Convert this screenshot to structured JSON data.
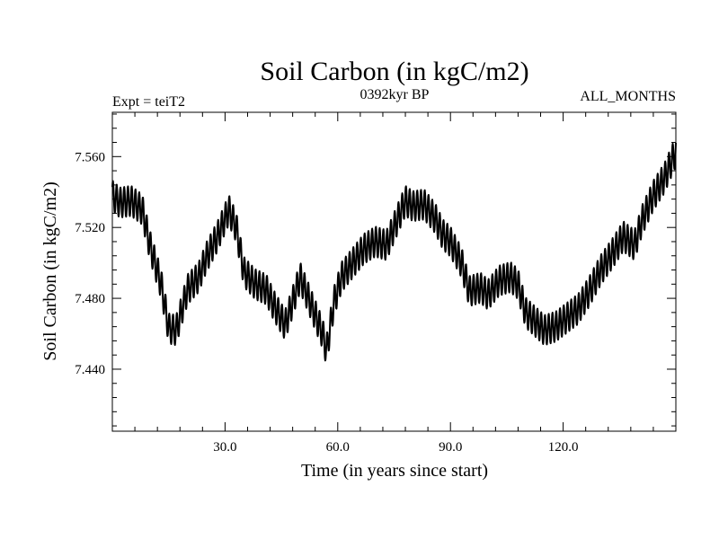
{
  "chart_data": {
    "type": "line",
    "title": "Soil Carbon (in kgC/m2)",
    "subtitle_left": "Expt = teiT2",
    "subtitle_center": "0392kyr BP",
    "subtitle_right": "ALL_MONTHS",
    "xlabel": "Time (in years since start)",
    "ylabel": "Soil Carbon (in kgC/m2)",
    "xlim": [
      0,
      150
    ],
    "ylim": [
      7.405,
      7.585
    ],
    "x_ticks": [
      30,
      60,
      90,
      120
    ],
    "x_tick_labels": [
      "30.0",
      "60.0",
      "90.0",
      "120.0"
    ],
    "y_ticks": [
      7.44,
      7.48,
      7.52,
      7.56
    ],
    "y_tick_labels": [
      "7.440",
      "7.480",
      "7.520",
      "7.560"
    ],
    "grid": false,
    "line_color": "#000000",
    "series": [
      {
        "x": [
          0,
          2,
          5,
          8,
          10,
          13,
          15,
          17,
          20,
          23,
          25,
          28,
          31,
          33,
          35,
          38,
          41,
          43,
          46,
          48,
          50,
          53,
          56,
          57,
          59,
          61,
          64,
          67,
          70,
          73,
          76,
          78,
          80,
          83,
          86,
          88,
          90,
          93,
          95,
          98,
          100,
          103,
          106,
          108,
          110,
          113,
          115,
          118,
          121,
          124,
          127,
          130,
          133,
          136,
          139,
          141,
          144,
          147,
          150
        ],
        "values": [
          7.538,
          7.534,
          7.535,
          7.53,
          7.51,
          7.488,
          7.463,
          7.462,
          7.485,
          7.492,
          7.503,
          7.515,
          7.53,
          7.52,
          7.495,
          7.488,
          7.485,
          7.476,
          7.465,
          7.478,
          7.492,
          7.476,
          7.46,
          7.45,
          7.478,
          7.492,
          7.5,
          7.508,
          7.512,
          7.51,
          7.525,
          7.535,
          7.532,
          7.533,
          7.525,
          7.516,
          7.512,
          7.5,
          7.484,
          7.486,
          7.482,
          7.49,
          7.492,
          7.488,
          7.472,
          7.466,
          7.462,
          7.464,
          7.469,
          7.474,
          7.484,
          7.496,
          7.505,
          7.515,
          7.51,
          7.524,
          7.538,
          7.548,
          7.563
        ]
      }
    ]
  }
}
